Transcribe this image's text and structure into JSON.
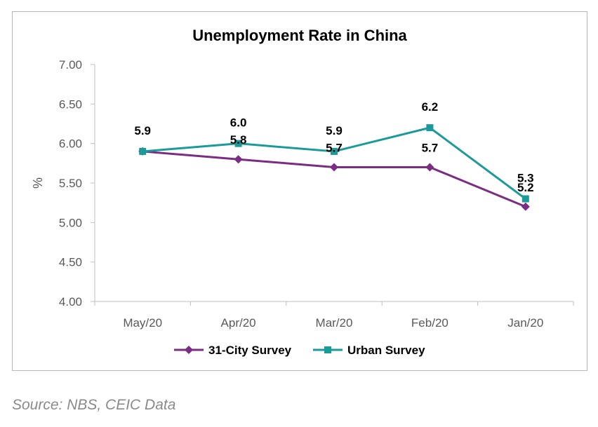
{
  "chart_data": {
    "type": "line",
    "title": "Unemployment Rate in China",
    "xlabel": "",
    "ylabel": "%",
    "categories": [
      "May/20",
      "Apr/20",
      "Mar/20",
      "Feb/20",
      "Jan/20"
    ],
    "ylim": [
      4.0,
      7.0
    ],
    "yticks": [
      "4.00",
      "4.50",
      "5.00",
      "5.50",
      "6.00",
      "6.50",
      "7.00"
    ],
    "grid": false,
    "legend_position": "bottom",
    "series": [
      {
        "name": "31-City Survey",
        "values": [
          5.9,
          5.8,
          5.7,
          5.7,
          5.2
        ],
        "labels": [
          "",
          "5.8",
          "5.7",
          "5.7",
          "5.2"
        ],
        "color": "#7b2c83",
        "marker": "diamond"
      },
      {
        "name": "Urban Survey",
        "values": [
          5.9,
          6.0,
          5.9,
          6.2,
          5.3
        ],
        "labels": [
          "5.9",
          "6.0",
          "5.9",
          "6.2",
          "5.3"
        ],
        "color": "#1a9a98",
        "marker": "square"
      }
    ]
  },
  "source": "Source: NBS, CEIC Data"
}
